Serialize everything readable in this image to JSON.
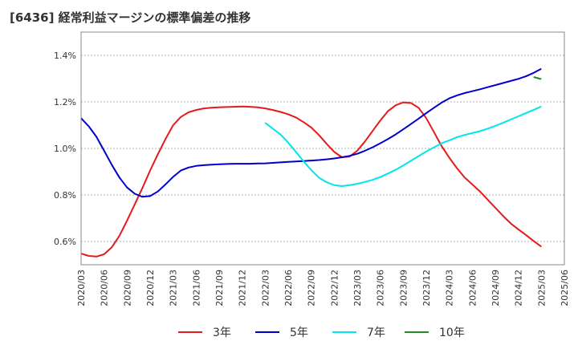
{
  "title": "[6436]  経常利益マージンの標準偏差の推移",
  "chart_data": {
    "type": "line",
    "title": "[6436]  経常利益マージンの標準偏差の推移",
    "xlabel": "",
    "ylabel": "",
    "ylim": [
      0.5,
      1.5
    ],
    "yticks": [
      0.6,
      0.8,
      1.0,
      1.2,
      1.4
    ],
    "ytick_labels": [
      "0.6%",
      "0.8%",
      "1.0%",
      "1.2%",
      "1.4%"
    ],
    "x_tick_labels": [
      "2020/03",
      "2020/06",
      "2020/09",
      "2020/12",
      "2021/03",
      "2021/06",
      "2021/09",
      "2021/12",
      "2022/03",
      "2022/06",
      "2022/09",
      "2022/12",
      "2023/03",
      "2023/06",
      "2023/09",
      "2023/12",
      "2024/03",
      "2024/06",
      "2024/09",
      "2024/12",
      "2025/03",
      "2025/06"
    ],
    "grid": true,
    "legend_position": "bottom",
    "series": [
      {
        "name": "3年",
        "color": "#e41a1c",
        "x": [
          "2020/03",
          "2020/04",
          "2020/05",
          "2020/06",
          "2020/07",
          "2020/08",
          "2020/09",
          "2020/10",
          "2020/11",
          "2020/12",
          "2021/01",
          "2021/02",
          "2021/03",
          "2021/04",
          "2021/05",
          "2021/06",
          "2021/07",
          "2021/08",
          "2021/09",
          "2021/10",
          "2021/11",
          "2021/12",
          "2022/01",
          "2022/02",
          "2022/03",
          "2022/04",
          "2022/05",
          "2022/06",
          "2022/07",
          "2022/08",
          "2022/09",
          "2022/10",
          "2022/11",
          "2022/12",
          "2023/01",
          "2023/02",
          "2023/03",
          "2023/04",
          "2023/05",
          "2023/06",
          "2023/07",
          "2023/08",
          "2023/09",
          "2023/10",
          "2023/11",
          "2023/12",
          "2024/01",
          "2024/02",
          "2024/03",
          "2024/04",
          "2024/05",
          "2024/06",
          "2024/07",
          "2024/08",
          "2024/09",
          "2024/10",
          "2024/11",
          "2024/12",
          "2025/01",
          "2025/02",
          "2025/03"
        ],
        "values": [
          0.548,
          0.538,
          0.535,
          0.545,
          0.575,
          0.625,
          0.69,
          0.76,
          0.83,
          0.905,
          0.975,
          1.04,
          1.1,
          1.135,
          1.155,
          1.165,
          1.172,
          1.175,
          1.177,
          1.178,
          1.179,
          1.18,
          1.179,
          1.177,
          1.172,
          1.165,
          1.157,
          1.147,
          1.133,
          1.113,
          1.09,
          1.058,
          1.02,
          0.985,
          0.962,
          0.965,
          0.99,
          1.03,
          1.075,
          1.12,
          1.16,
          1.185,
          1.198,
          1.195,
          1.175,
          1.13,
          1.07,
          1.01,
          0.96,
          0.915,
          0.875,
          0.845,
          0.815,
          0.78,
          0.745,
          0.71,
          0.678,
          0.652,
          0.628,
          0.602,
          0.578
        ]
      },
      {
        "name": "5年",
        "color": "#0000cc",
        "x": [
          "2020/03",
          "2020/04",
          "2020/05",
          "2020/06",
          "2020/07",
          "2020/08",
          "2020/09",
          "2020/10",
          "2020/11",
          "2020/12",
          "2021/01",
          "2021/02",
          "2021/03",
          "2021/04",
          "2021/05",
          "2021/06",
          "2021/07",
          "2021/08",
          "2021/09",
          "2021/10",
          "2021/11",
          "2021/12",
          "2022/01",
          "2022/02",
          "2022/03",
          "2022/04",
          "2022/05",
          "2022/06",
          "2022/07",
          "2022/08",
          "2022/09",
          "2022/10",
          "2022/11",
          "2022/12",
          "2023/01",
          "2023/02",
          "2023/03",
          "2023/04",
          "2023/05",
          "2023/06",
          "2023/07",
          "2023/08",
          "2023/09",
          "2023/10",
          "2023/11",
          "2023/12",
          "2024/01",
          "2024/02",
          "2024/03",
          "2024/04",
          "2024/05",
          "2024/06",
          "2024/07",
          "2024/08",
          "2024/09",
          "2024/10",
          "2024/11",
          "2024/12",
          "2025/01",
          "2025/02",
          "2025/03"
        ],
        "values": [
          1.13,
          1.095,
          1.05,
          0.99,
          0.93,
          0.875,
          0.832,
          0.805,
          0.792,
          0.795,
          0.815,
          0.845,
          0.878,
          0.905,
          0.918,
          0.925,
          0.928,
          0.93,
          0.932,
          0.933,
          0.934,
          0.934,
          0.934,
          0.935,
          0.936,
          0.938,
          0.94,
          0.942,
          0.944,
          0.946,
          0.948,
          0.95,
          0.953,
          0.957,
          0.962,
          0.968,
          0.977,
          0.99,
          1.005,
          1.022,
          1.04,
          1.06,
          1.082,
          1.105,
          1.128,
          1.152,
          1.175,
          1.197,
          1.215,
          1.228,
          1.238,
          1.246,
          1.254,
          1.263,
          1.272,
          1.281,
          1.29,
          1.299,
          1.31,
          1.325,
          1.342
        ]
      },
      {
        "name": "7年",
        "color": "#00e5ee",
        "x": [
          "2022/03",
          "2022/04",
          "2022/05",
          "2022/06",
          "2022/07",
          "2022/08",
          "2022/09",
          "2022/10",
          "2022/11",
          "2022/12",
          "2023/01",
          "2023/02",
          "2023/03",
          "2023/04",
          "2023/05",
          "2023/06",
          "2023/07",
          "2023/08",
          "2023/09",
          "2023/10",
          "2023/11",
          "2023/12",
          "2024/01",
          "2024/02",
          "2024/03",
          "2024/04",
          "2024/05",
          "2024/06",
          "2024/07",
          "2024/08",
          "2024/09",
          "2024/10",
          "2024/11",
          "2024/12",
          "2025/01",
          "2025/02",
          "2025/03"
        ],
        "values": [
          1.11,
          1.085,
          1.06,
          1.025,
          0.985,
          0.945,
          0.907,
          0.875,
          0.855,
          0.842,
          0.838,
          0.842,
          0.848,
          0.856,
          0.865,
          0.877,
          0.892,
          0.908,
          0.927,
          0.947,
          0.967,
          0.987,
          1.005,
          1.022,
          1.035,
          1.048,
          1.058,
          1.066,
          1.074,
          1.085,
          1.097,
          1.11,
          1.124,
          1.138,
          1.152,
          1.166,
          1.18
        ]
      },
      {
        "name": "10年",
        "color": "#228b22",
        "x": [
          "2025/02",
          "2025/03"
        ],
        "values": [
          1.307,
          1.298
        ]
      }
    ]
  }
}
